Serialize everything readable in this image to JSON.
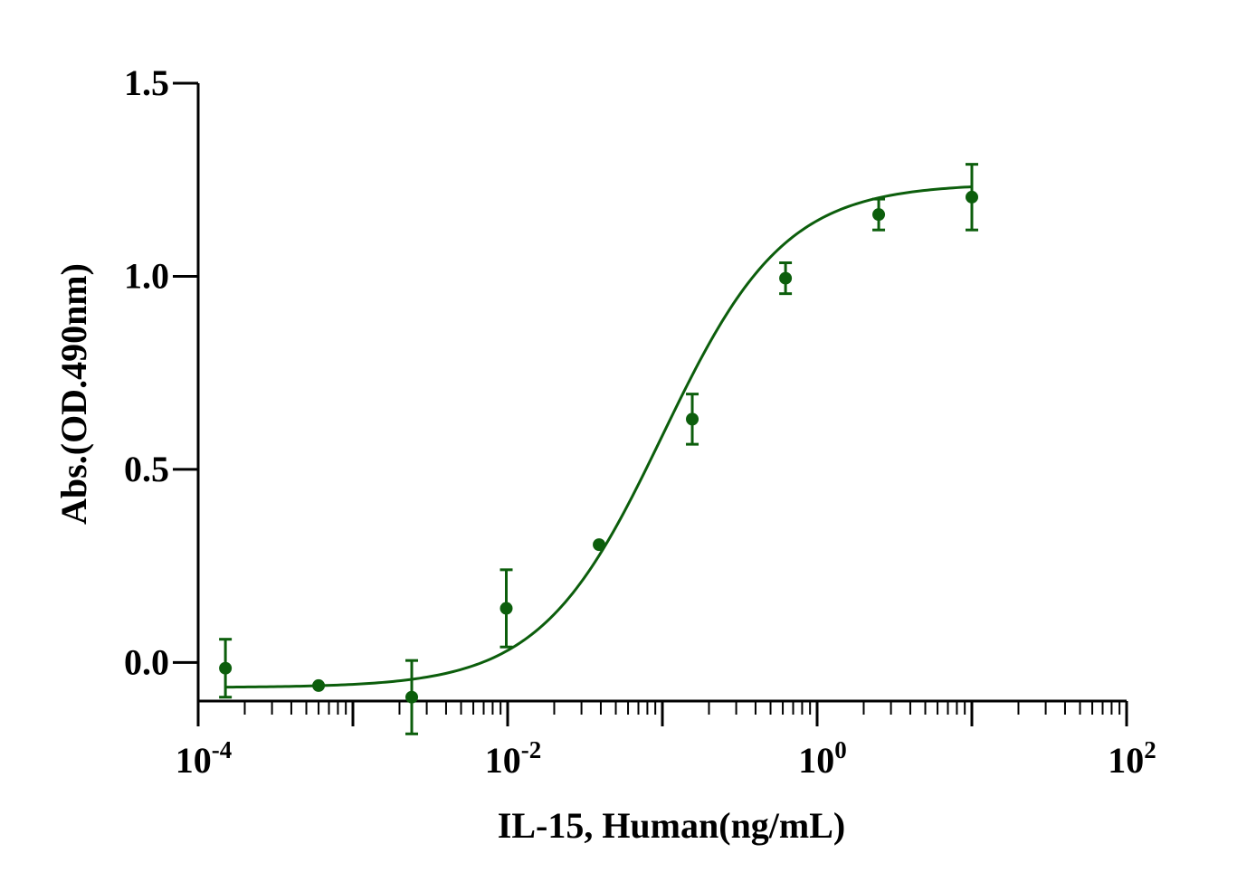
{
  "chart_data": {
    "type": "scatter",
    "title": "",
    "xlabel": "IL-15, Human(ng/mL)",
    "ylabel": "Abs.(OD.490nm)",
    "xscale": "log10",
    "xlim": [
      0.0001,
      100
    ],
    "ylim": [
      -0.1,
      1.5
    ],
    "x_ticks": [
      {
        "base": "10",
        "exp": "-4"
      },
      {
        "base": "10",
        "exp": "-2"
      },
      {
        "base": "10",
        "exp": "0"
      },
      {
        "base": "10",
        "exp": "2"
      }
    ],
    "y_ticks": [
      "0.0",
      "0.5",
      "1.0",
      "1.5"
    ],
    "color": "#0c5e0c",
    "series": [
      {
        "name": "IL-15, Human",
        "x": [
          0.00015,
          0.0006,
          0.0024,
          0.0098,
          0.039,
          0.156,
          0.625,
          2.5,
          10
        ],
        "y": [
          -0.015,
          -0.06,
          -0.09,
          0.14,
          0.305,
          0.63,
          0.995,
          1.16,
          1.205
        ],
        "err": [
          0.075,
          0.0,
          0.095,
          0.1,
          0.0,
          0.065,
          0.04,
          0.04,
          0.085
        ]
      }
    ],
    "fit": {
      "model": "4PL",
      "bottom": -0.065,
      "top": 1.24,
      "ec50": 0.1,
      "hill": 1.1,
      "x_range": [
        0.00015,
        10
      ]
    }
  }
}
